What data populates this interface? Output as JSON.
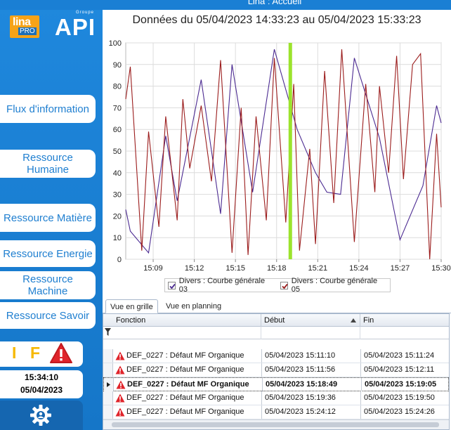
{
  "window": {
    "title": "Lina : Accueil"
  },
  "logo": {
    "lina": "lina",
    "pro": "PRO",
    "groupe": "Groupe",
    "api": "API"
  },
  "nav": [
    {
      "label": "Flux d'information"
    },
    {
      "label": "Ressource Humaine"
    },
    {
      "label": "Ressource Matière"
    },
    {
      "label": "Ressource Energie"
    },
    {
      "label": "Ressource Machine"
    },
    {
      "label": "Ressource Savoir"
    }
  ],
  "status": {
    "indicator_i": "I",
    "indicator_f": "F",
    "time": "15:34:10",
    "date": "05/04/2023"
  },
  "colors": {
    "accent": "#1a7fd4",
    "series03": "#4b2a91",
    "series05": "#9b1c1c",
    "cursor": "#9be32c",
    "warning": "#e0242b"
  },
  "chart_data": {
    "type": "line",
    "title": "Données du 05/04/2023 14:33:23 au 05/04/2023 15:33:23",
    "xlabel": "",
    "ylabel": "",
    "xlim": [
      "15:07",
      "15:30"
    ],
    "ylim": [
      0,
      100
    ],
    "yticks": [
      0,
      10,
      20,
      30,
      40,
      50,
      60,
      70,
      80,
      90,
      100
    ],
    "xticks": [
      "15:09",
      "15:12",
      "15:15",
      "15:18",
      "15:21",
      "15:24",
      "15:27",
      "15:30"
    ],
    "grid": true,
    "legend_position": "bottom",
    "cursor_time": "15:19",
    "series": [
      {
        "name": "Divers : Courbe générale 03",
        "color": "#4b2a91",
        "points": [
          [
            "15:07:00",
            23
          ],
          [
            "15:07:20",
            13
          ],
          [
            "15:08:40",
            3
          ],
          [
            "15:09:55",
            57
          ],
          [
            "15:10:45",
            27
          ],
          [
            "15:12:30",
            83
          ],
          [
            "15:13:55",
            21
          ],
          [
            "15:14:45",
            90
          ],
          [
            "15:16:15",
            31
          ],
          [
            "15:17:50",
            97
          ],
          [
            "15:19:30",
            60
          ],
          [
            "15:20:50",
            40
          ],
          [
            "15:21:40",
            31
          ],
          [
            "15:22:40",
            30
          ],
          [
            "15:23:40",
            93
          ],
          [
            "15:25:30",
            56
          ],
          [
            "15:27:00",
            9
          ],
          [
            "15:28:40",
            34
          ],
          [
            "15:29:40",
            71
          ],
          [
            "15:30:00",
            63
          ]
        ]
      },
      {
        "name": "Divers : Courbe générale 05",
        "color": "#9b1c1c",
        "points": [
          [
            "15:07:00",
            74
          ],
          [
            "15:07:20",
            89
          ],
          [
            "15:08:10",
            4
          ],
          [
            "15:08:40",
            59
          ],
          [
            "15:09:25",
            15
          ],
          [
            "15:09:55",
            66
          ],
          [
            "15:10:45",
            18
          ],
          [
            "15:11:10",
            74
          ],
          [
            "15:11:40",
            42
          ],
          [
            "15:12:30",
            71
          ],
          [
            "15:13:15",
            36
          ],
          [
            "15:13:55",
            92
          ],
          [
            "15:14:45",
            3
          ],
          [
            "15:15:25",
            70
          ],
          [
            "15:15:55",
            2
          ],
          [
            "15:16:30",
            66
          ],
          [
            "15:17:15",
            18
          ],
          [
            "15:17:50",
            93
          ],
          [
            "15:18:40",
            17
          ],
          [
            "15:19:15",
            81
          ],
          [
            "15:19:40",
            4
          ],
          [
            "15:20:25",
            51
          ],
          [
            "15:20:50",
            7
          ],
          [
            "15:21:30",
            87
          ],
          [
            "15:22:10",
            26
          ],
          [
            "15:22:45",
            97
          ],
          [
            "15:23:40",
            8
          ],
          [
            "15:24:30",
            81
          ],
          [
            "15:25:10",
            31
          ],
          [
            "15:25:30",
            80
          ],
          [
            "15:26:10",
            40
          ],
          [
            "15:26:45",
            94
          ],
          [
            "15:27:15",
            37
          ],
          [
            "15:27:55",
            90
          ],
          [
            "15:28:30",
            95
          ],
          [
            "15:29:10",
            0
          ],
          [
            "15:29:40",
            58
          ],
          [
            "15:30:00",
            24
          ]
        ]
      }
    ]
  },
  "tabs": [
    {
      "label": "Vue en grille",
      "active": true
    },
    {
      "label": "Vue en planning",
      "active": false
    }
  ],
  "grid": {
    "columns": [
      {
        "label": "Fonction"
      },
      {
        "label": "Début",
        "sorted": "asc"
      },
      {
        "label": "Fin"
      }
    ],
    "rows": [
      {
        "fonction": "DEF_0227 : Défaut MF Organique",
        "debut": "05/04/2023 15:11:10",
        "fin": "05/04/2023 15:11:24",
        "selected": false
      },
      {
        "fonction": "DEF_0227 : Défaut MF Organique",
        "debut": "05/04/2023 15:11:56",
        "fin": "05/04/2023 15:12:11",
        "selected": false
      },
      {
        "fonction": "DEF_0227 : Défaut MF Organique",
        "debut": "05/04/2023 15:18:49",
        "fin": "05/04/2023 15:19:05",
        "selected": true
      },
      {
        "fonction": "DEF_0227 : Défaut MF Organique",
        "debut": "05/04/2023 15:19:36",
        "fin": "05/04/2023 15:19:50",
        "selected": false
      },
      {
        "fonction": "DEF_0227 : Défaut MF Organique",
        "debut": "05/04/2023 15:24:12",
        "fin": "05/04/2023 15:24:26",
        "selected": false
      }
    ]
  }
}
